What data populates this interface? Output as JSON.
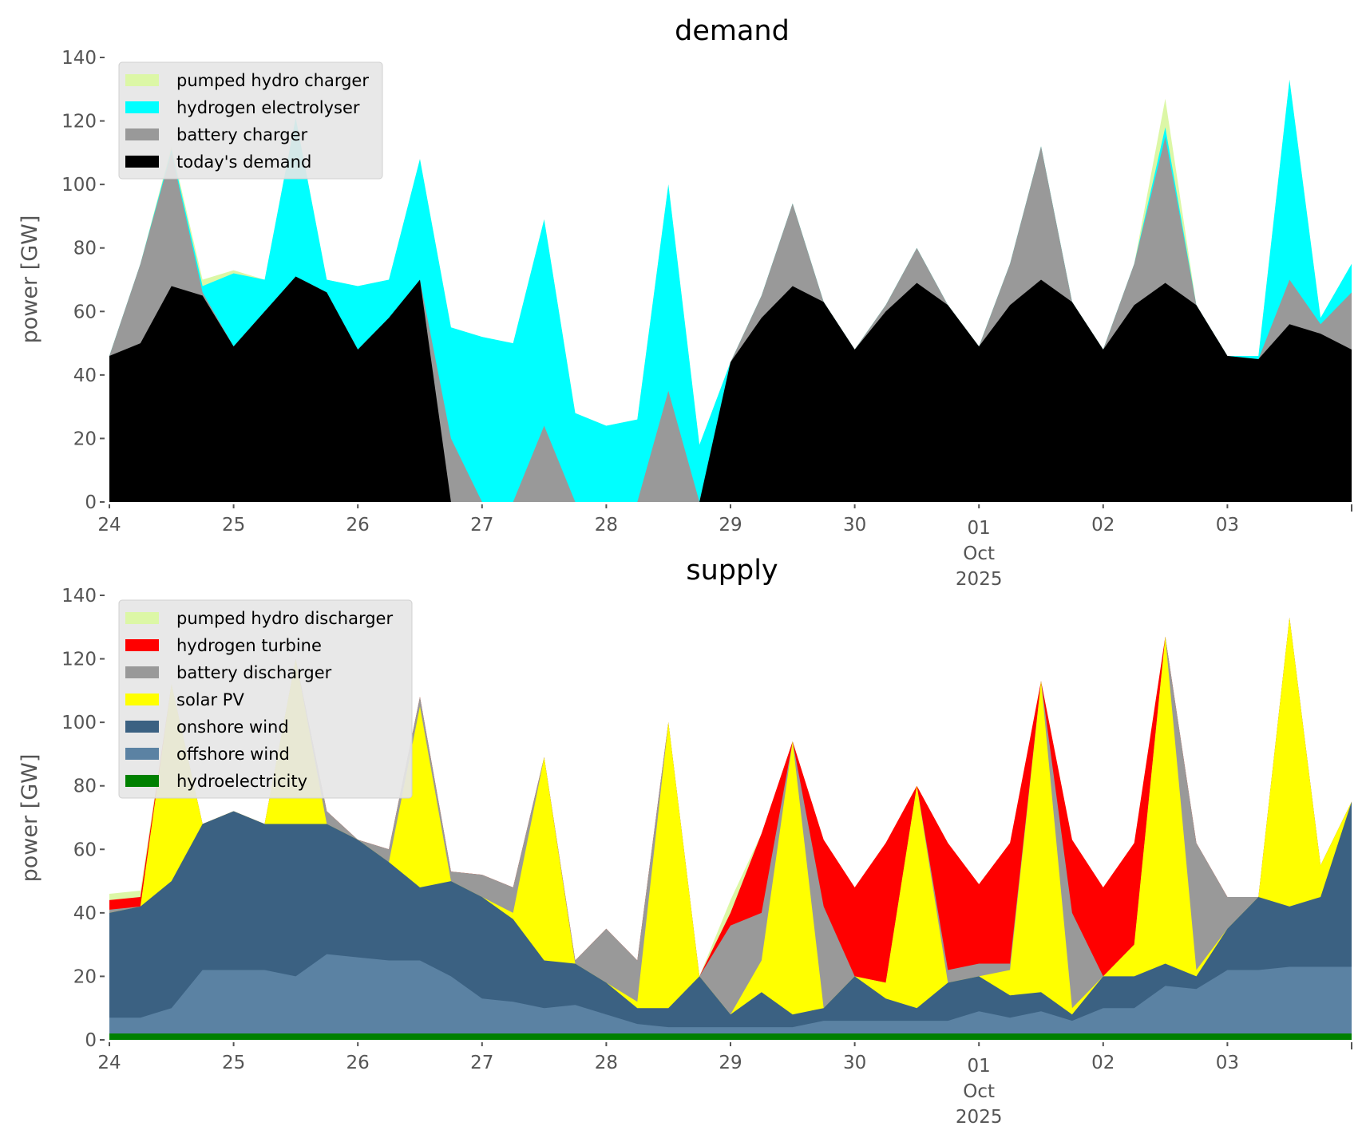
{
  "chart_data": [
    {
      "type": "area",
      "stacked": true,
      "title": "demand",
      "ylabel": "power [GW]",
      "xlabel": "",
      "ylim": [
        0,
        140
      ],
      "yticks": [
        0,
        20,
        40,
        60,
        80,
        100,
        120,
        140
      ],
      "x_unit": "days since 24 Sep 2025",
      "xlim": [
        0,
        10
      ],
      "xticks": [
        {
          "x": 0,
          "label": "24"
        },
        {
          "x": 1,
          "label": "25"
        },
        {
          "x": 2,
          "label": "26"
        },
        {
          "x": 3,
          "label": "27"
        },
        {
          "x": 4,
          "label": "28"
        },
        {
          "x": 5,
          "label": "29"
        },
        {
          "x": 6,
          "label": "30"
        },
        {
          "x": 7,
          "label": "01",
          "sub": [
            "Oct",
            "2025"
          ]
        },
        {
          "x": 8,
          "label": "02"
        },
        {
          "x": 9,
          "label": "03"
        }
      ],
      "legend_position": "top-left",
      "x": [
        0,
        0.25,
        0.5,
        0.75,
        1,
        1.25,
        1.5,
        1.75,
        2,
        2.25,
        2.5,
        2.75,
        3,
        3.25,
        3.5,
        3.75,
        4,
        4.25,
        4.5,
        4.75,
        5,
        5.25,
        5.5,
        5.75,
        6,
        6.25,
        6.5,
        6.75,
        7,
        7.25,
        7.5,
        7.75,
        8,
        8.25,
        8.5,
        8.75,
        9,
        9.25,
        9.5,
        9.75,
        10
      ],
      "value_mode": "cumulative stack top (GW)",
      "series": [
        {
          "name": "pumped hydro charger",
          "color": "#dcf7a6",
          "values": [
            46,
            75,
            112,
            70,
            73,
            70,
            121,
            70,
            68,
            70,
            108,
            55,
            52,
            50,
            89,
            28,
            24,
            26,
            100,
            18,
            44,
            65,
            94,
            63,
            48,
            62,
            80,
            62,
            49,
            75,
            112,
            63,
            48,
            75,
            127,
            62,
            46,
            46,
            133,
            58,
            75
          ]
        },
        {
          "name": "hydrogen electrolyser",
          "color": "#00ffff",
          "values": [
            46,
            75,
            111,
            68,
            72,
            70,
            121,
            70,
            68,
            70,
            108,
            55,
            52,
            50,
            89,
            28,
            24,
            26,
            100,
            18,
            44,
            65,
            94,
            63,
            48,
            62,
            80,
            62,
            49,
            75,
            112,
            63,
            48,
            75,
            118,
            62,
            46,
            46,
            133,
            58,
            75
          ]
        },
        {
          "name": "battery charger",
          "color": "#999999",
          "values": [
            46,
            75,
            110,
            66,
            49,
            60,
            71,
            66,
            48,
            58,
            70,
            20,
            0,
            0,
            24,
            0,
            0,
            0,
            35,
            0,
            44,
            65,
            94,
            63,
            48,
            62,
            80,
            62,
            49,
            75,
            112,
            63,
            48,
            75,
            115,
            62,
            46,
            45,
            70,
            56,
            66
          ]
        },
        {
          "name": "today's demand",
          "color": "#000000",
          "values": [
            46,
            50,
            68,
            65,
            49,
            60,
            71,
            66,
            48,
            58,
            70,
            0,
            0,
            0,
            0,
            0,
            0,
            0,
            0,
            0,
            44,
            58,
            68,
            63,
            48,
            60,
            69,
            62,
            49,
            62,
            70,
            63,
            48,
            62,
            69,
            62,
            46,
            45,
            56,
            53,
            48
          ]
        }
      ]
    },
    {
      "type": "area",
      "stacked": true,
      "title": "supply",
      "ylabel": "power [GW]",
      "xlabel": "",
      "ylim": [
        0,
        140
      ],
      "yticks": [
        0,
        20,
        40,
        60,
        80,
        100,
        120,
        140
      ],
      "x_unit": "days since 24 Sep 2025",
      "xlim": [
        0,
        10
      ],
      "xticks": [
        {
          "x": 0,
          "label": "24"
        },
        {
          "x": 1,
          "label": "25"
        },
        {
          "x": 2,
          "label": "26"
        },
        {
          "x": 3,
          "label": "27"
        },
        {
          "x": 4,
          "label": "28"
        },
        {
          "x": 5,
          "label": "29"
        },
        {
          "x": 6,
          "label": "30"
        },
        {
          "x": 7,
          "label": "01",
          "sub": [
            "Oct",
            "2025"
          ]
        },
        {
          "x": 8,
          "label": "02"
        },
        {
          "x": 9,
          "label": "03"
        }
      ],
      "legend_position": "top-left",
      "x": [
        0,
        0.25,
        0.5,
        0.75,
        1,
        1.25,
        1.5,
        1.75,
        2,
        2.25,
        2.5,
        2.75,
        3,
        3.25,
        3.5,
        3.75,
        4,
        4.25,
        4.5,
        4.75,
        5,
        5.25,
        5.5,
        5.75,
        6,
        6.25,
        6.5,
        6.75,
        7,
        7.25,
        7.5,
        7.75,
        8,
        8.25,
        8.5,
        8.75,
        9,
        9.25,
        9.5,
        9.75,
        10
      ],
      "value_mode": "cumulative stack top (GW)",
      "series": [
        {
          "name": "pumped hydro discharger",
          "color": "#dcf7a6",
          "values": [
            46,
            47,
            112,
            68,
            72,
            68,
            120,
            72,
            63,
            60,
            108,
            53,
            52,
            48,
            89,
            25,
            35,
            25,
            100,
            20,
            44,
            65,
            94,
            63,
            48,
            62,
            80,
            62,
            49,
            62,
            113,
            63,
            48,
            62,
            127,
            62,
            45,
            45,
            133,
            55,
            75
          ]
        },
        {
          "name": "hydrogen turbine",
          "color": "#ff0000",
          "values": [
            44,
            45,
            112,
            68,
            72,
            68,
            120,
            72,
            63,
            60,
            108,
            53,
            52,
            48,
            89,
            25,
            35,
            25,
            100,
            20,
            40,
            65,
            94,
            63,
            48,
            62,
            80,
            62,
            49,
            62,
            113,
            63,
            48,
            62,
            127,
            62,
            45,
            45,
            133,
            55,
            75
          ]
        },
        {
          "name": "battery discharger",
          "color": "#999999",
          "values": [
            41,
            42,
            112,
            68,
            72,
            68,
            120,
            72,
            63,
            60,
            108,
            53,
            52,
            48,
            89,
            25,
            35,
            25,
            100,
            20,
            36,
            40,
            94,
            42,
            20,
            18,
            80,
            22,
            24,
            24,
            113,
            40,
            20,
            30,
            127,
            62,
            45,
            45,
            133,
            55,
            75
          ]
        },
        {
          "name": "solar PV",
          "color": "#ffff00",
          "values": [
            40,
            42,
            112,
            68,
            72,
            68,
            120,
            68,
            63,
            56,
            105,
            50,
            45,
            40,
            89,
            24,
            18,
            12,
            100,
            20,
            8,
            25,
            94,
            10,
            20,
            18,
            80,
            18,
            20,
            22,
            113,
            10,
            20,
            30,
            127,
            22,
            35,
            45,
            133,
            55,
            75
          ]
        },
        {
          "name": "onshore wind",
          "color": "#3b6182",
          "values": [
            40,
            42,
            50,
            68,
            72,
            68,
            68,
            68,
            63,
            56,
            48,
            50,
            45,
            38,
            25,
            24,
            18,
            10,
            10,
            20,
            8,
            15,
            8,
            10,
            20,
            13,
            10,
            18,
            20,
            14,
            15,
            8,
            20,
            20,
            24,
            20,
            35,
            45,
            42,
            45,
            75
          ]
        },
        {
          "name": "offshore wind",
          "color": "#5b82a3",
          "values": [
            7,
            7,
            10,
            22,
            22,
            22,
            20,
            27,
            26,
            25,
            25,
            20,
            13,
            12,
            10,
            11,
            8,
            5,
            4,
            4,
            4,
            4,
            4,
            6,
            6,
            6,
            6,
            6,
            9,
            7,
            9,
            6,
            10,
            10,
            17,
            16,
            22,
            22,
            23,
            23,
            23
          ]
        },
        {
          "name": "hydroelectricity",
          "color": "#008000",
          "values": [
            2,
            2,
            2,
            2,
            2,
            2,
            2,
            2,
            2,
            2,
            2,
            2,
            2,
            2,
            2,
            2,
            2,
            2,
            2,
            2,
            2,
            2,
            2,
            2,
            2,
            2,
            2,
            2,
            2,
            2,
            2,
            2,
            2,
            2,
            2,
            2,
            2,
            2,
            2,
            2,
            2
          ]
        }
      ]
    }
  ]
}
